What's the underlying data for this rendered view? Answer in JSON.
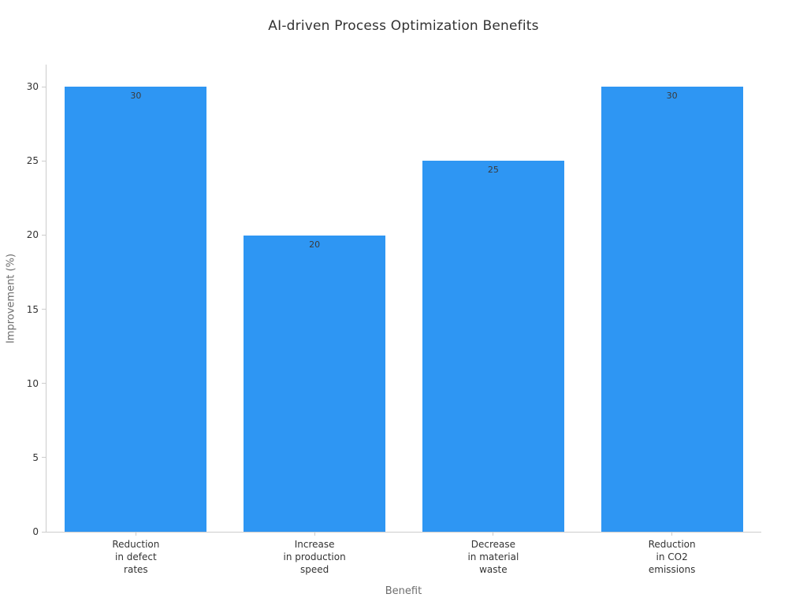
{
  "chart_data": {
    "type": "bar",
    "title": "AI-driven Process Optimization Benefits",
    "xlabel": "Benefit",
    "ylabel": "Improvement (%)",
    "categories": [
      "Reduction\nin defect\nrates",
      "Increase\nin production\nspeed",
      "Decrease\nin material\nwaste",
      "Reduction\nin CO2\nemissions"
    ],
    "values": [
      30,
      20,
      25,
      30
    ],
    "yticks": [
      0,
      5,
      10,
      15,
      20,
      25,
      30
    ],
    "ylim": [
      0,
      31.5
    ],
    "grid": false,
    "legend": "none",
    "bar_color": "#2e96f3",
    "spine_color": "#cccccc",
    "tick_label_color": "#333333",
    "axis_title_color": "#6e6e6e",
    "bar_label_color": "#3a3a3a"
  }
}
